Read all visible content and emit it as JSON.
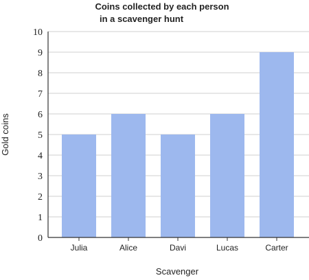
{
  "chart_data": {
    "type": "bar",
    "title_lines": [
      "Coins collected by each person",
      "in a scavenger hunt"
    ],
    "xlabel": "Scavenger",
    "ylabel": "Gold coins",
    "categories": [
      "Julia",
      "Alice",
      "Davi",
      "Lucas",
      "Carter"
    ],
    "values": [
      5,
      6,
      5,
      6,
      9
    ],
    "ylim": [
      0,
      10
    ],
    "yticks": [
      "0",
      "1",
      "2",
      "3",
      "4",
      "5",
      "6",
      "7",
      "8",
      "9",
      "10"
    ],
    "bar_color": "#9db8ee",
    "grid": true,
    "legend": "none"
  }
}
